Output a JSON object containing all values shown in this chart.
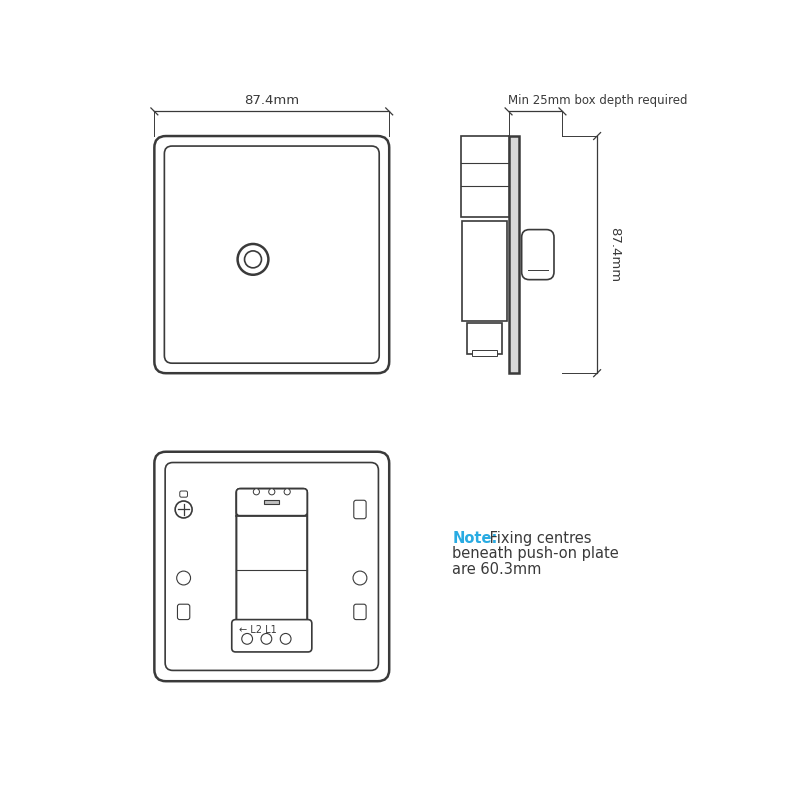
{
  "bg_color": "#ffffff",
  "line_color": "#3a3a3a",
  "note_color_bold": "#29abe2",
  "note_color_normal": "#3a3a3a",
  "dim_width_label": "87.4mm",
  "dim_height_label": "87.4mm",
  "dim_depth_label": "Min 25mm box depth required",
  "note_text_bold": "Note:",
  "note_text_normal": " Fixing centres\nbeneath push-on plate\nare 60.3mm"
}
